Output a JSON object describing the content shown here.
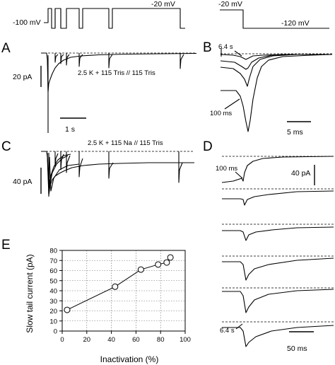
{
  "protocol_left": {
    "hold_label": "-100 mV",
    "step_label": "-20 mV"
  },
  "protocol_right": {
    "step_label": "-20 mV",
    "tail_label": "-120 mV"
  },
  "panels": {
    "A": {
      "letter": "A",
      "scale_y_label": "20 pA",
      "scale_x_label": "1 s",
      "solution_label": "2.5 K + 115 Tris // 115 Tris"
    },
    "B": {
      "letter": "B",
      "top_label": "6.4 s",
      "bottom_label": "100 ms",
      "scale_x_label": "5 ms"
    },
    "C": {
      "letter": "C",
      "solution_label": "2.5 K + 115 Na // 115 Tris",
      "scale_y_label": "40 pA"
    },
    "D": {
      "letter": "D",
      "top_label": "100 ms",
      "bottom_label": "6.4 s",
      "scale_y_label": "40 pA",
      "scale_x_label": "50 ms"
    },
    "E": {
      "letter": "E"
    }
  },
  "chart_data": {
    "type": "scatter",
    "xlabel": "Inactivation (%)",
    "ylabel": "Slow tail current (pA)",
    "xlim": [
      0,
      100
    ],
    "ylim": [
      0,
      80
    ],
    "x_ticks": [
      "0",
      "20",
      "40",
      "60",
      "80",
      "100"
    ],
    "y_ticks": [
      "0",
      "10",
      "20",
      "30",
      "40",
      "50",
      "60",
      "70",
      "80"
    ],
    "grid": true,
    "series": [
      {
        "x": [
          4,
          43,
          64,
          78,
          85,
          88
        ],
        "y": [
          21,
          44,
          61,
          66,
          68,
          73
        ]
      }
    ]
  }
}
